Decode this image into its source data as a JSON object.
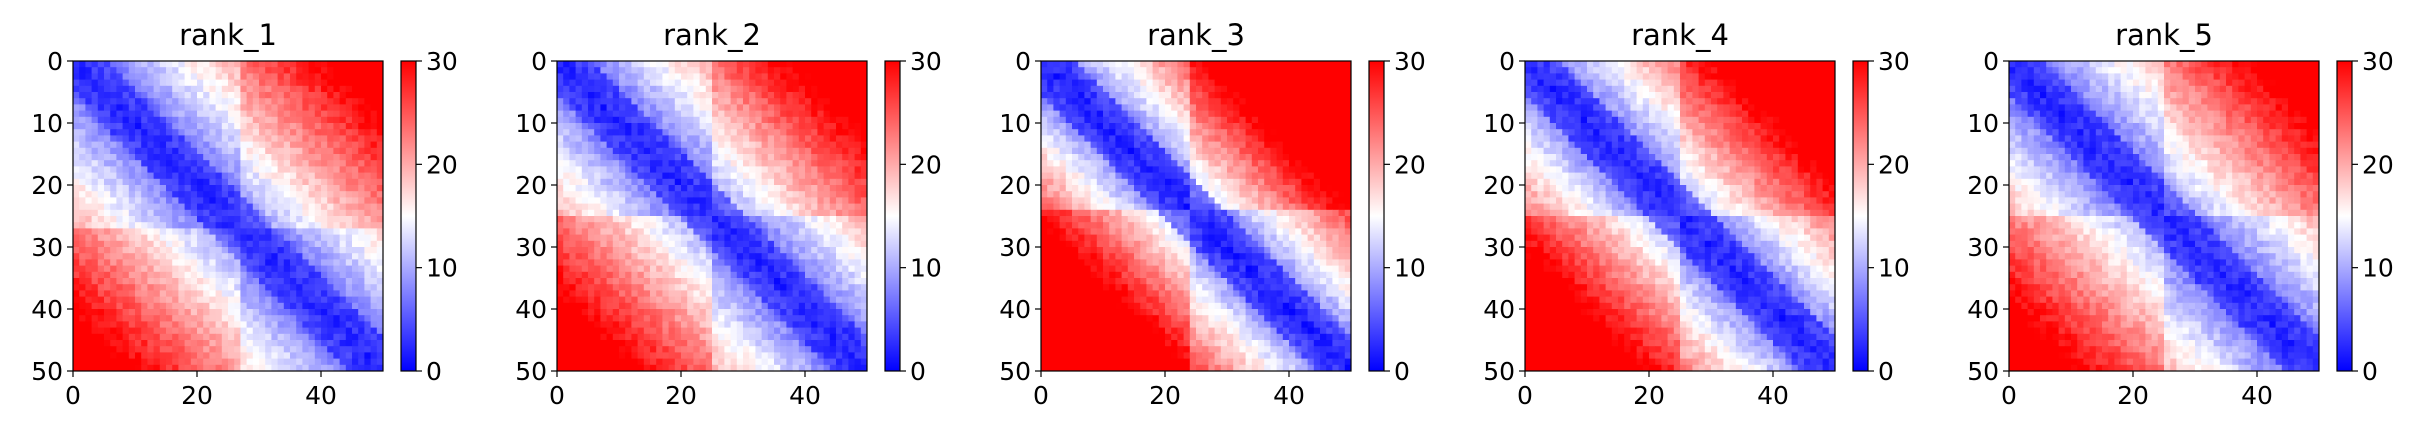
{
  "figure": {
    "colorbar": {
      "ticks": [
        0,
        10,
        20,
        30
      ],
      "colors": {
        "low": "#0000ff",
        "mid": "#ffffff",
        "high": "#ff0000"
      },
      "range": [
        0,
        30
      ]
    }
  },
  "chart_data": [
    {
      "type": "heatmap",
      "title": "rank_1",
      "size": 50,
      "xlim": [
        0,
        50
      ],
      "ylim": [
        50,
        0
      ],
      "xticks": [
        0,
        20,
        40
      ],
      "yticks": [
        0,
        10,
        20,
        30,
        40,
        50
      ],
      "zlim": [
        0,
        30
      ],
      "contrast": 0.8,
      "diag_width": 6,
      "corner_value": 27,
      "block_break": 27
    },
    {
      "type": "heatmap",
      "title": "rank_2",
      "size": 50,
      "xlim": [
        0,
        50
      ],
      "ylim": [
        50,
        0
      ],
      "xticks": [
        0,
        20,
        40
      ],
      "yticks": [
        0,
        10,
        20,
        30,
        40,
        50
      ],
      "zlim": [
        0,
        30
      ],
      "contrast": 0.85,
      "diag_width": 6,
      "corner_value": 27,
      "block_break": 25
    },
    {
      "type": "heatmap",
      "title": "rank_3",
      "size": 50,
      "xlim": [
        0,
        50
      ],
      "ylim": [
        50,
        0
      ],
      "xticks": [
        0,
        20,
        40
      ],
      "yticks": [
        0,
        10,
        20,
        30,
        40,
        50
      ],
      "zlim": [
        0,
        30
      ],
      "contrast": 1.0,
      "diag_width": 6,
      "corner_value": 30,
      "block_break": 24
    },
    {
      "type": "heatmap",
      "title": "rank_4",
      "size": 50,
      "xlim": [
        0,
        50
      ],
      "ylim": [
        50,
        0
      ],
      "xticks": [
        0,
        20,
        40
      ],
      "yticks": [
        0,
        10,
        20,
        30,
        40,
        50
      ],
      "zlim": [
        0,
        30
      ],
      "contrast": 0.92,
      "diag_width": 6,
      "corner_value": 29,
      "block_break": 25
    },
    {
      "type": "heatmap",
      "title": "rank_5",
      "size": 50,
      "xlim": [
        0,
        50
      ],
      "ylim": [
        50,
        0
      ],
      "xticks": [
        0,
        20,
        40
      ],
      "yticks": [
        0,
        10,
        20,
        30,
        40,
        50
      ],
      "zlim": [
        0,
        30
      ],
      "contrast": 0.82,
      "diag_width": 6,
      "corner_value": 27,
      "block_break": 25
    }
  ]
}
